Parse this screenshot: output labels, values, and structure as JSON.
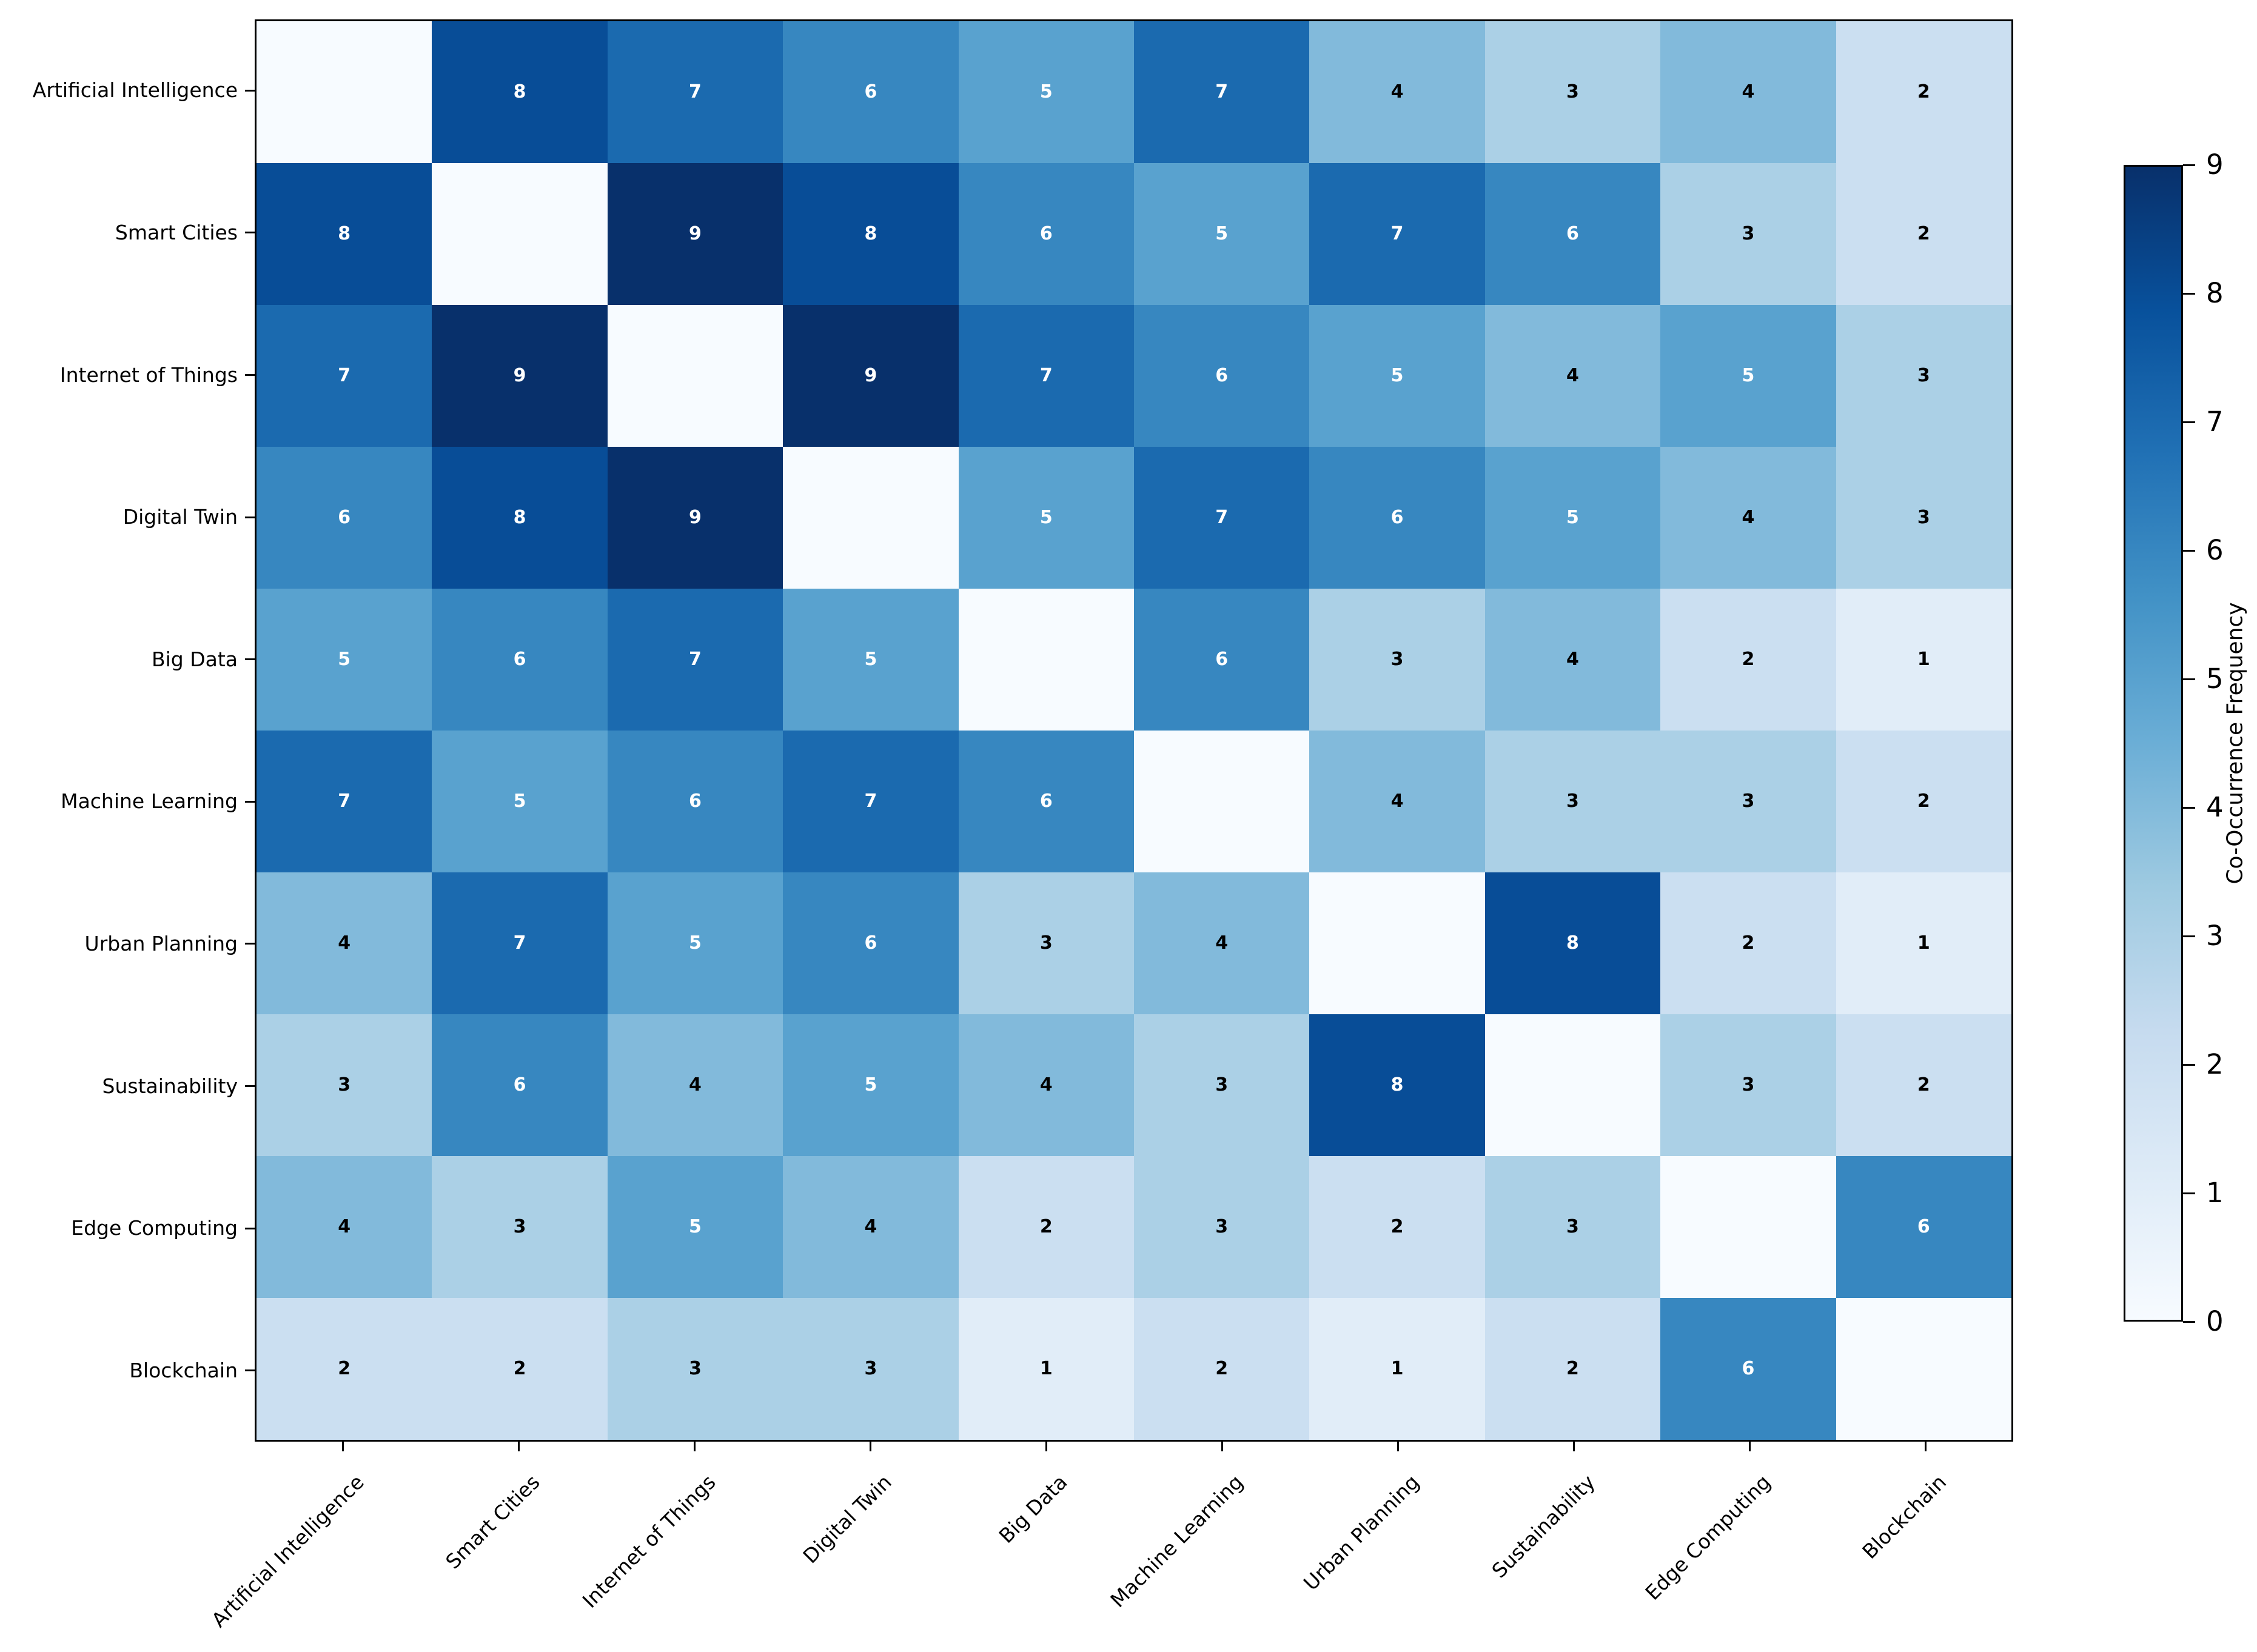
{
  "figure": {
    "background_color": "#ffffff",
    "axis_color": "#000000"
  },
  "chart_data": {
    "type": "heatmap",
    "title": "",
    "xlabel": "",
    "ylabel": "",
    "categories": [
      "Artificial Intelligence",
      "Smart Cities",
      "Internet of Things",
      "Digital Twin",
      "Big Data",
      "Machine Learning",
      "Urban Planning",
      "Sustainability",
      "Edge Computing",
      "Blockchain"
    ],
    "matrix": [
      [
        null,
        8,
        7,
        6,
        5,
        7,
        4,
        3,
        4,
        2
      ],
      [
        8,
        null,
        9,
        8,
        6,
        5,
        7,
        6,
        3,
        2
      ],
      [
        7,
        9,
        null,
        9,
        7,
        6,
        5,
        4,
        5,
        3
      ],
      [
        6,
        8,
        9,
        null,
        5,
        7,
        6,
        5,
        4,
        3
      ],
      [
        5,
        6,
        7,
        5,
        null,
        6,
        3,
        4,
        2,
        1
      ],
      [
        7,
        5,
        6,
        7,
        6,
        null,
        4,
        3,
        3,
        2
      ],
      [
        4,
        7,
        5,
        6,
        3,
        4,
        null,
        8,
        2,
        1
      ],
      [
        3,
        6,
        4,
        5,
        4,
        3,
        8,
        null,
        3,
        2
      ],
      [
        4,
        3,
        5,
        4,
        2,
        3,
        2,
        3,
        null,
        6
      ],
      [
        2,
        2,
        3,
        3,
        1,
        2,
        1,
        2,
        6,
        null
      ]
    ],
    "diagonal_display_value": 0,
    "x_tick_rotation_deg": 45,
    "grid": false,
    "colorbar": {
      "label": "Co-Occurrence Frequency",
      "ticks": [
        0,
        1,
        2,
        3,
        4,
        5,
        6,
        7,
        8,
        9
      ],
      "min": 0,
      "max": 9,
      "position": "right"
    },
    "colormap": {
      "name": "Blues",
      "value_colors": {
        "0": "#f7fbff",
        "1": "#e1edf8",
        "2": "#cbdff1",
        "3": "#abd0e6",
        "4": "#82badb",
        "5": "#59a2cf",
        "6": "#3787c0",
        "7": "#1b6aaf",
        "8": "#084d97",
        "9": "#08306b"
      },
      "gradient_stops": [
        "#f7fbff",
        "#deebf7",
        "#c6dbef",
        "#9ecae1",
        "#6baed6",
        "#4292c6",
        "#2171b5",
        "#08519c",
        "#08306b"
      ]
    },
    "annotation_style": {
      "dark_cell_text_color": "#ffffff",
      "light_cell_text_color": "#000000",
      "white_text_min_value": 5
    }
  }
}
